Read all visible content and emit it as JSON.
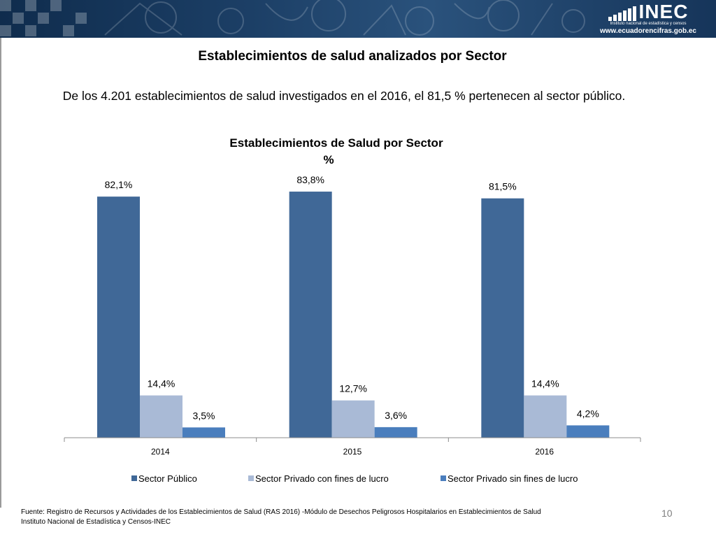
{
  "header": {
    "logo_text": "INEC",
    "logo_subtitle": "Instituto nacional de estadística y censos",
    "website": "www.ecuadorencifras.gob.ec"
  },
  "slide": {
    "title": "Establecimientos de salud analizados por Sector",
    "summary": "De los 4.201 establecimientos de salud investigados en el 2016, el  81,5 % pertenecen al sector público.",
    "page_number": "10"
  },
  "footer": {
    "source": "Fuente: Registro de Recursos y Actividades de los Establecimientos de Salud (RAS 2016) -Módulo de Desechos Peligrosos Hospitalarios en Establecimientos de Salud",
    "institution": "Instituto Nacional de Estadística y Censos-INEC"
  },
  "chart_data": {
    "type": "bar",
    "title": "Establecimientos de Salud por Sector",
    "subtitle": "%",
    "categories": [
      "2014",
      "2015",
      "2016"
    ],
    "series": [
      {
        "name": "Sector Público",
        "color": "#406897",
        "values": [
          82.1,
          83.8,
          81.5
        ],
        "labels": [
          "82,1%",
          "83,8%",
          "81,5%"
        ]
      },
      {
        "name": "Sector Privado con fines de lucro",
        "color": "#a9bad6",
        "values": [
          14.4,
          12.7,
          14.4
        ],
        "labels": [
          "14,4%",
          "12,7%",
          "14,4%"
        ]
      },
      {
        "name": "Sector Privado sin fines de lucro",
        "color": "#4a7ebd",
        "values": [
          3.5,
          3.6,
          4.2
        ],
        "labels": [
          "3,5%",
          "3,6%",
          "4,2%"
        ]
      }
    ],
    "ylim": [
      0,
      100
    ],
    "legend": "bottom",
    "grid": false
  }
}
